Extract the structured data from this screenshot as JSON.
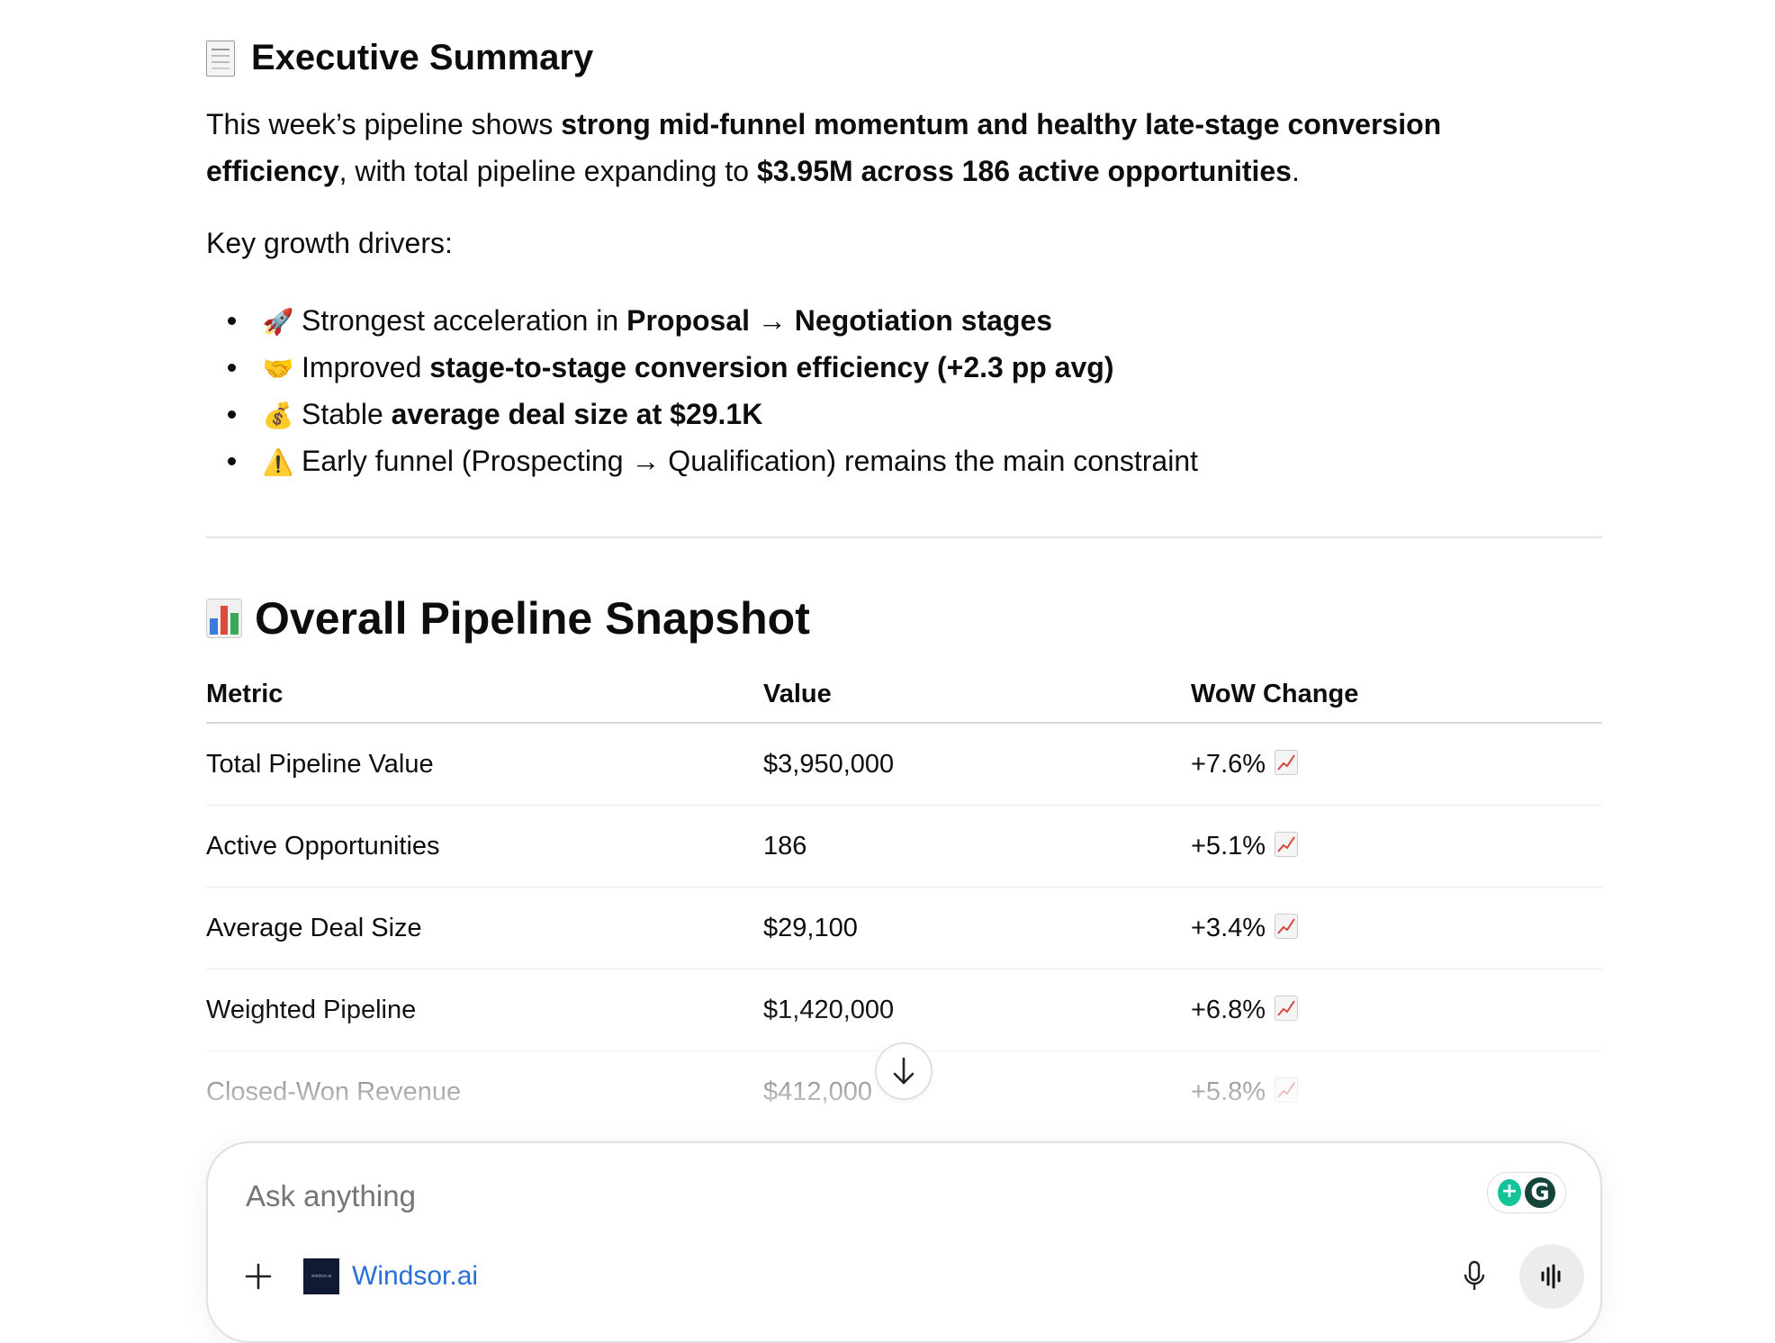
{
  "summary": {
    "heading": "Executive Summary",
    "heading_icon": "receipt-icon",
    "para": {
      "p1": "This week’s pipeline shows ",
      "b1": "strong mid-funnel momentum and healthy late-stage conversion efficiency",
      "p2": ", with total pipeline expanding to ",
      "b2": "$3.95M across 186 active opportunities",
      "p3": "."
    },
    "drivers_label": "Key growth drivers:",
    "bullets": [
      {
        "icon": "🚀",
        "pre": "Strongest acceleration in ",
        "bold": "Proposal → Negotiation stages",
        "post": ""
      },
      {
        "icon": "🤝",
        "pre": "Improved ",
        "bold": "stage-to-stage conversion efficiency (+2.3 pp avg)",
        "post": ""
      },
      {
        "icon": "💰",
        "pre": "Stable ",
        "bold": "average deal size at $29.1K",
        "post": ""
      },
      {
        "icon": "⚠️",
        "pre": "Early funnel (Prospecting → Qualification) remains the main constraint",
        "bold": "",
        "post": ""
      }
    ]
  },
  "snapshot": {
    "heading": "Overall Pipeline Snapshot",
    "heading_icon": "bar-chart-icon",
    "columns": [
      "Metric",
      "Value",
      "WoW Change"
    ],
    "rows": [
      {
        "metric": "Total Pipeline Value",
        "value": "$3,950,000",
        "change": "+7.6%"
      },
      {
        "metric": "Active Opportunities",
        "value": "186",
        "change": "+5.1%"
      },
      {
        "metric": "Average Deal Size",
        "value": "$29,100",
        "change": "+3.4%"
      },
      {
        "metric": "Weighted Pipeline",
        "value": "$1,420,000",
        "change": "+6.8%"
      },
      {
        "metric": "Closed-Won Revenue",
        "value": "$412,000",
        "change": "+5.8%"
      }
    ],
    "trend_icon": "chart-increasing-icon"
  },
  "composer": {
    "placeholder": "Ask anything",
    "connector_label": "Windsor.ai",
    "connector_logo_text": "windsor.ai"
  },
  "colors": {
    "link": "#2a6fd6",
    "grammarly_green": "#15c39a",
    "grammarly_dark": "#15443b"
  }
}
